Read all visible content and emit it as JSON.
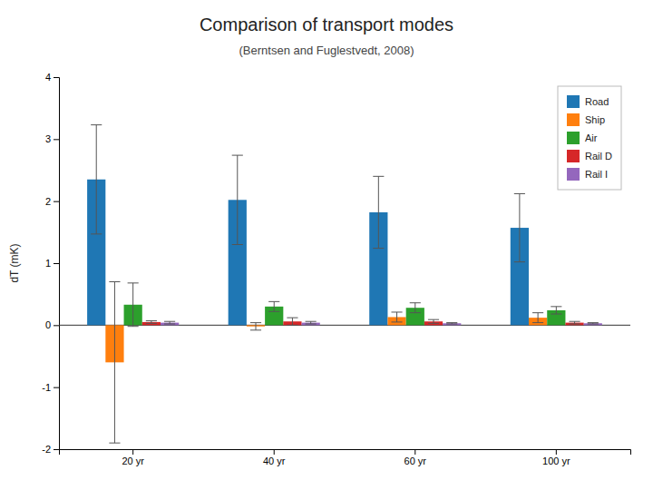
{
  "chart_data": {
    "type": "bar",
    "title": "Comparison of transport modes",
    "subtitle": "(Berntsen and Fuglestvedt, 2008)",
    "ylabel": "dT (mK)",
    "categories": [
      "20 yr",
      "40 yr",
      "60 yr",
      "100 yr"
    ],
    "series": [
      {
        "name": "Road",
        "values": [
          2.35,
          2.02,
          1.82,
          1.57
        ],
        "errors": [
          0.88,
          0.72,
          0.58,
          0.55
        ]
      },
      {
        "name": "Ship",
        "values": [
          -0.6,
          -0.02,
          0.13,
          0.12
        ],
        "errors": [
          1.3,
          0.06,
          0.08,
          0.08
        ]
      },
      {
        "name": "Air",
        "values": [
          0.33,
          0.3,
          0.28,
          0.24
        ],
        "errors": [
          0.35,
          0.08,
          0.08,
          0.06
        ]
      },
      {
        "name": "Rail D",
        "values": [
          0.05,
          0.06,
          0.06,
          0.04
        ],
        "errors": [
          0.02,
          0.06,
          0.03,
          0.02
        ]
      },
      {
        "name": "Rail I",
        "values": [
          0.04,
          0.04,
          0.03,
          0.03
        ],
        "errors": [
          0.02,
          0.02,
          0.01,
          0.01
        ]
      }
    ],
    "ylim": [
      -2.0,
      4.0
    ],
    "yticks": [
      -2.0,
      -1.0,
      0.0,
      1.0,
      2.0,
      3.0,
      4.0
    ],
    "grid": false,
    "legend": "upper right"
  }
}
